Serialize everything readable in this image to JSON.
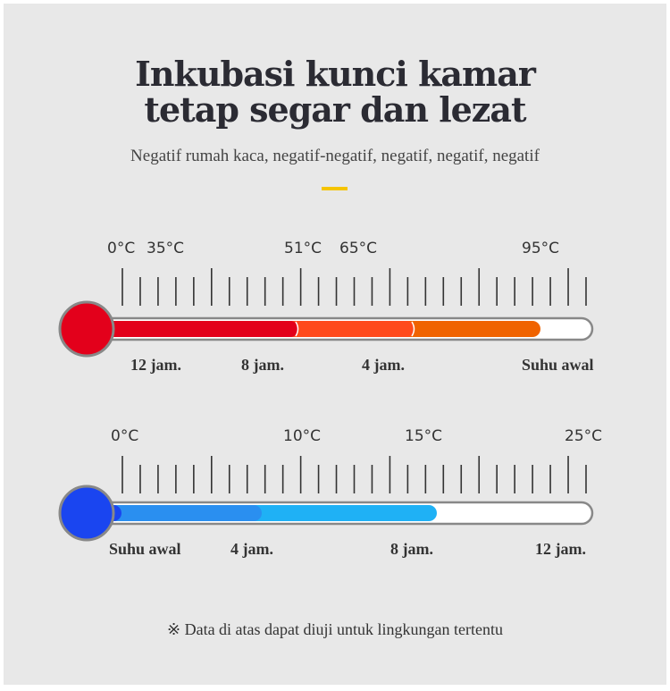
{
  "header": {
    "title_line1": "Inkubasi kunci kamar",
    "title_line2": "tetap segar dan lezat",
    "subtitle": "Negatif rumah kaca, negatif-negatif, negatif, negatif, negatif"
  },
  "thermometers": [
    {
      "temperature_labels": [
        "0°C",
        "35°C",
        "51°C",
        "65°C",
        "95°C"
      ],
      "time_labels": [
        "12 jam.",
        "8 jam.",
        "4 jam.",
        "Suhu awal"
      ],
      "colors": [
        "#e3001b",
        "#ff4a1c",
        "#f06300"
      ]
    },
    {
      "temperature_labels": [
        "0°C",
        "10°C",
        "15°C",
        "25°C"
      ],
      "time_labels": [
        "Suhu awal",
        "4 jam.",
        "8 jam.",
        "12 jam."
      ],
      "colors": [
        "#1a45f0",
        "#2a8ff0",
        "#1fb1f5"
      ]
    }
  ],
  "note": "※ Data di atas dapat diuji untuk lingkungan tertentu",
  "colors": {
    "background": "#e8e8e8",
    "accent": "#f5c400",
    "tube_outline": "#888888"
  }
}
